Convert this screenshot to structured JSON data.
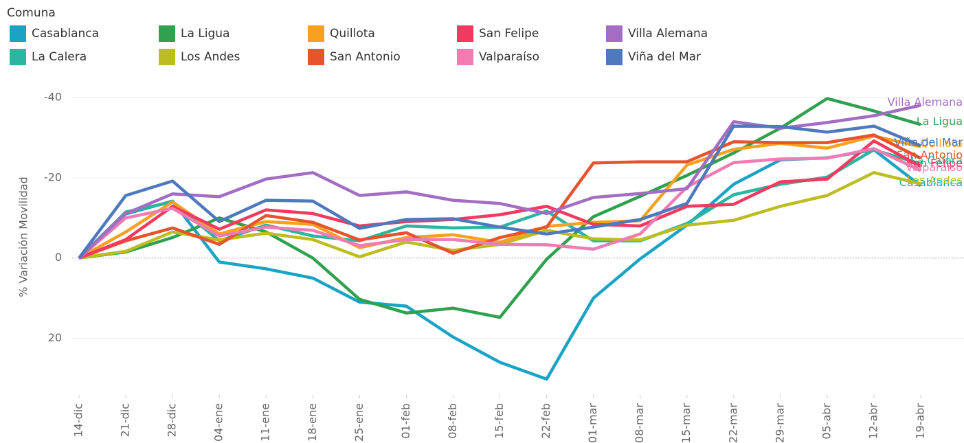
{
  "chart_data": {
    "type": "line",
    "legend_title": "Comuna",
    "y_label": "% Variación Movilidad",
    "categories": [
      "14-dic",
      "21-dic",
      "28-dic",
      "04-ene",
      "11-ene",
      "18-ene",
      "25-ene",
      "01-feb",
      "08-feb",
      "15-feb",
      "22-feb",
      "01-mar",
      "08-mar",
      "15-mar",
      "22-mar",
      "29-mar",
      "05-abr",
      "12-abr",
      "19-abr"
    ],
    "ylim": [
      -45,
      35
    ],
    "y_reversed": true,
    "yticks": [
      -40,
      -20,
      0,
      20
    ],
    "grid": true,
    "series": [
      {
        "name": "Casablanca",
        "color": "#1ba3c6",
        "values": [
          0,
          -11,
          -14.2,
          1,
          2.7,
          5,
          11,
          12,
          19.7,
          26,
          30.2,
          10,
          0.2,
          -8.2,
          -18.4,
          -24.5,
          -25,
          -27,
          -18
        ]
      },
      {
        "name": "La Calera",
        "color": "#2cb5a0",
        "values": [
          0,
          -11.5,
          -14,
          -4.3,
          -8.2,
          -5.5,
          -4.3,
          -8,
          -7.5,
          -7.7,
          -11.7,
          -4.3,
          -4.3,
          -8.6,
          -15.8,
          -18.4,
          -20.2,
          -27,
          -23.5
        ]
      },
      {
        "name": "La Ligua",
        "color": "#30a14e",
        "values": [
          0,
          -1.5,
          -5.1,
          -10,
          -6.5,
          0,
          10.3,
          13.7,
          12.5,
          14.8,
          0.3,
          -10.3,
          -15.4,
          -20.6,
          -26.2,
          -32.4,
          -39.8,
          -36.7,
          -33.3
        ]
      },
      {
        "name": "Los Andes",
        "color": "#bcbd22",
        "values": [
          0,
          -1.7,
          -6.5,
          -4.5,
          -6.2,
          -4.6,
          -0.3,
          -4,
          -1.9,
          -3.4,
          -6.9,
          -4.8,
          -4.5,
          -8.2,
          -9.4,
          -12.9,
          -15.6,
          -21.3,
          -18.5
        ]
      },
      {
        "name": "Quillota",
        "color": "#f8a121",
        "values": [
          0,
          -6.5,
          -14,
          -6,
          -9.1,
          -8.4,
          -2.6,
          -5.1,
          -5.8,
          -3.9,
          -7.9,
          -8.9,
          -9.3,
          -23.2,
          -27.1,
          -28.6,
          -27.4,
          -30.4,
          -27.8
        ]
      },
      {
        "name": "San Antonio",
        "color": "#e6532d",
        "values": [
          0,
          -4.3,
          -7.5,
          -3.4,
          -10.6,
          -8.9,
          -4.5,
          -6.3,
          -1.2,
          -5.1,
          -7.7,
          -23.7,
          -24,
          -24,
          -29,
          -28.8,
          -28.8,
          -30.7,
          -24.9
        ]
      },
      {
        "name": "San Felipe",
        "color": "#f13a5e",
        "values": [
          0,
          -4.6,
          -12.9,
          -7.2,
          -12,
          -11.1,
          -8,
          -9.1,
          -9.6,
          -10.8,
          -12.9,
          -8.4,
          -8,
          -12.9,
          -13.4,
          -19,
          -19.7,
          -29.2,
          -22.8
        ]
      },
      {
        "name": "Valparaíso",
        "color": "#f07cb4",
        "values": [
          0,
          -10,
          -12.4,
          -5.5,
          -7.7,
          -6.9,
          -3.1,
          -4.6,
          -4.6,
          -3.4,
          -3.3,
          -2.2,
          -6,
          -17.7,
          -23.8,
          -24.7,
          -24.9,
          -27.3,
          -21.8
        ]
      },
      {
        "name": "Villa Alemana",
        "color": "#a26dc2",
        "values": [
          0,
          -11.1,
          -16,
          -15.3,
          -19.7,
          -21.3,
          -15.6,
          -16.5,
          -14.4,
          -13.6,
          -11.1,
          -15.1,
          -16.1,
          -17.3,
          -34,
          -32.4,
          -33.8,
          -35.5,
          -38.1
        ]
      },
      {
        "name": "Viña del Mar",
        "color": "#4e79bc",
        "values": [
          0,
          -15.6,
          -19.2,
          -9.1,
          -14.4,
          -14.2,
          -7.4,
          -9.6,
          -9.8,
          -7.7,
          -6,
          -7.7,
          -9.6,
          -13.6,
          -32.9,
          -32.8,
          -31.4,
          -32.9,
          -28
        ]
      }
    ]
  }
}
